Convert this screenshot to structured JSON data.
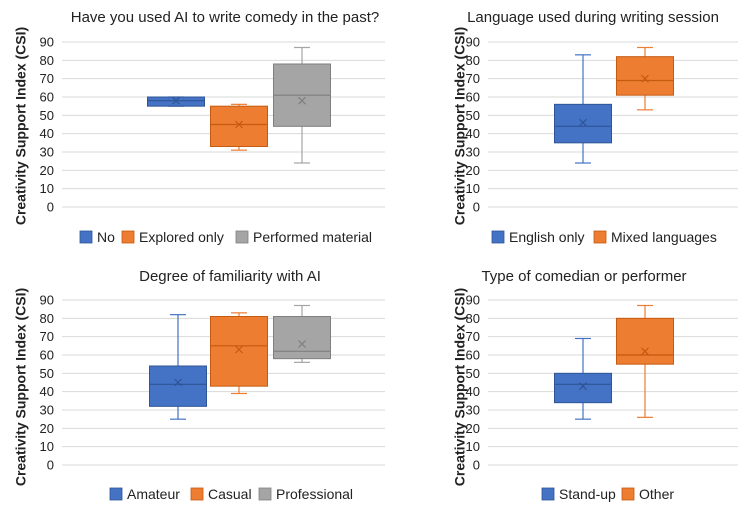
{
  "colors": {
    "blue": "#4472C4",
    "blue_dark": "#2F5597",
    "orange": "#ED7D31",
    "orange_dark": "#C55A11",
    "gray": "#A5A5A5",
    "gray_dark": "#7F7F7F",
    "grid": "#D9D9D9"
  },
  "chart_data": [
    {
      "type": "box",
      "title": "Have you used AI to write comedy in the past?",
      "ylabel": "Creativity Support Index (CSI)",
      "ylim": [
        0,
        90
      ],
      "yticks": [
        0,
        10,
        20,
        30,
        40,
        50,
        60,
        70,
        80,
        90
      ],
      "series": [
        {
          "name": "No",
          "color": "blue",
          "min": 55,
          "q1": 55,
          "median": 58,
          "q3": 60,
          "max": 60,
          "mean": 58
        },
        {
          "name": "Explored only",
          "color": "orange",
          "min": 31,
          "q1": 33,
          "median": 45,
          "q3": 55,
          "max": 56,
          "mean": 45
        },
        {
          "name": "Performed material",
          "color": "gray",
          "min": 24,
          "q1": 44,
          "median": 61,
          "q3": 78,
          "max": 87,
          "mean": 58
        }
      ]
    },
    {
      "type": "box",
      "title": "Language used during writing session",
      "ylabel": "Creativity Support Index (CSI)",
      "ylim": [
        0,
        90
      ],
      "yticks": [
        0,
        10,
        20,
        30,
        40,
        50,
        60,
        70,
        80,
        90
      ],
      "series": [
        {
          "name": "English only",
          "color": "blue",
          "min": 24,
          "q1": 35,
          "median": 44,
          "q3": 56,
          "max": 83,
          "mean": 46
        },
        {
          "name": "Mixed languages",
          "color": "orange",
          "min": 53,
          "q1": 61,
          "median": 69,
          "q3": 82,
          "max": 87,
          "mean": 70
        }
      ]
    },
    {
      "type": "box",
      "title": "Degree of familiarity with AI",
      "ylabel": "Creativity Support Index (CSI)",
      "ylim": [
        0,
        90
      ],
      "yticks": [
        0,
        10,
        20,
        30,
        40,
        50,
        60,
        70,
        80,
        90
      ],
      "series": [
        {
          "name": "Amateur",
          "color": "blue",
          "min": 25,
          "q1": 32,
          "median": 44,
          "q3": 54,
          "max": 82,
          "mean": 45
        },
        {
          "name": "Casual",
          "color": "orange",
          "min": 39,
          "q1": 43,
          "median": 65,
          "q3": 81,
          "max": 83,
          "mean": 63
        },
        {
          "name": "Professional",
          "color": "gray",
          "min": 56,
          "q1": 58,
          "median": 62,
          "q3": 81,
          "max": 87,
          "mean": 66
        }
      ]
    },
    {
      "type": "box",
      "title": "Type of comedian or performer",
      "ylabel": "Creativity Support Index (CSI)",
      "ylim": [
        0,
        90
      ],
      "yticks": [
        0,
        10,
        20,
        30,
        40,
        50,
        60,
        70,
        80,
        90
      ],
      "series": [
        {
          "name": "Stand-up",
          "color": "blue",
          "min": 25,
          "q1": 34,
          "median": 44,
          "q3": 50,
          "max": 69,
          "mean": 43
        },
        {
          "name": "Other",
          "color": "orange",
          "min": 26,
          "q1": 55,
          "median": 60,
          "q3": 80,
          "max": 87,
          "mean": 62
        }
      ]
    }
  ]
}
